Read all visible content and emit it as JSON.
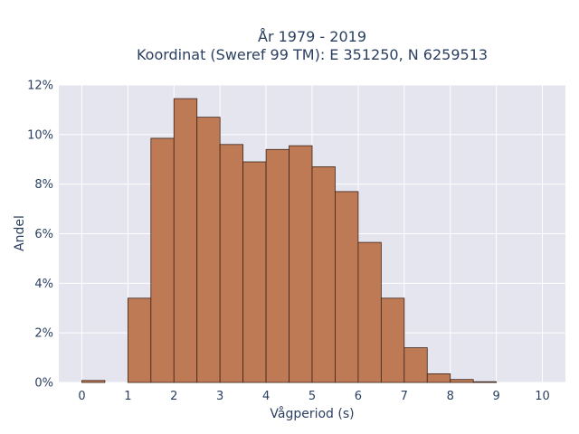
{
  "chart_data": {
    "type": "bar",
    "title_lines": [
      "År 1979 - 2019",
      "Koordinat (Sweref 99 TM): E 351250, N 6259513"
    ],
    "xlabel": "Vågperiod (s)",
    "ylabel": "Andel",
    "xlim": [
      -0.5,
      10.5
    ],
    "ylim": [
      0,
      12
    ],
    "x_ticks": [
      "0",
      "1",
      "2",
      "3",
      "4",
      "5",
      "6",
      "7",
      "8",
      "9",
      "10"
    ],
    "y_ticks": [
      "0%",
      "2%",
      "4%",
      "6%",
      "8%",
      "10%",
      "12%"
    ],
    "bin_width": 0.5,
    "bins": [
      {
        "x0": 0.0,
        "value": 0.08
      },
      {
        "x0": 0.5,
        "value": 0.0
      },
      {
        "x0": 1.0,
        "value": 3.4
      },
      {
        "x0": 1.5,
        "value": 9.85
      },
      {
        "x0": 2.0,
        "value": 11.45
      },
      {
        "x0": 2.5,
        "value": 10.7
      },
      {
        "x0": 3.0,
        "value": 9.6
      },
      {
        "x0": 3.5,
        "value": 8.9
      },
      {
        "x0": 4.0,
        "value": 9.4
      },
      {
        "x0": 4.5,
        "value": 9.55
      },
      {
        "x0": 5.0,
        "value": 8.7
      },
      {
        "x0": 5.5,
        "value": 7.7
      },
      {
        "x0": 6.0,
        "value": 5.65
      },
      {
        "x0": 6.5,
        "value": 3.4
      },
      {
        "x0": 7.0,
        "value": 1.4
      },
      {
        "x0": 7.5,
        "value": 0.35
      },
      {
        "x0": 8.0,
        "value": 0.12
      },
      {
        "x0": 8.5,
        "value": 0.03
      }
    ],
    "grid": true,
    "colors": {
      "bar_fill": "#bd7a55",
      "bar_stroke": "#3d2418",
      "plot_bg": "#e5e5f0",
      "grid": "#ffffff"
    }
  }
}
